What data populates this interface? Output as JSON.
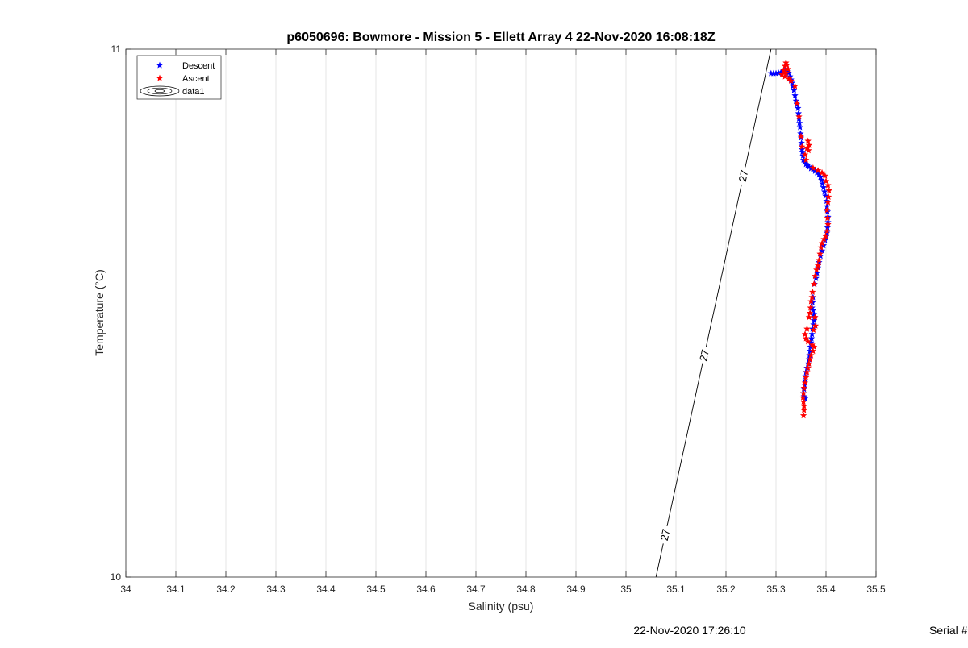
{
  "chart_data": {
    "type": "scatter",
    "title": "p6050696: Bowmore - Mission 5 - Ellett Array 4 22-Nov-2020 16:08:18Z",
    "xlabel": "Salinity (psu)",
    "ylabel": "Temperature (°C)",
    "xlim": [
      34,
      35.5
    ],
    "ylim": [
      10,
      11
    ],
    "x_ticks": [
      "34",
      "34.1",
      "34.2",
      "34.3",
      "34.4",
      "34.5",
      "34.6",
      "34.7",
      "34.8",
      "34.9",
      "35",
      "35.1",
      "35.2",
      "35.3",
      "35.4",
      "35.5"
    ],
    "y_ticks": [
      "10",
      "11"
    ],
    "grid": "x",
    "legend": {
      "placement": "top-left",
      "entries": [
        "Descent",
        "Ascent",
        "data1"
      ]
    },
    "series": [
      {
        "name": "Descent",
        "color": "#0000ff",
        "marker": "star",
        "points": [
          [
            35.29,
            10.954
          ],
          [
            35.295,
            10.954
          ],
          [
            35.3,
            10.954
          ],
          [
            35.305,
            10.955
          ],
          [
            35.31,
            10.956
          ],
          [
            35.315,
            10.957
          ],
          [
            35.318,
            10.959
          ],
          [
            35.32,
            10.962
          ],
          [
            35.322,
            10.958
          ],
          [
            35.325,
            10.955
          ],
          [
            35.328,
            10.948
          ],
          [
            35.33,
            10.942
          ],
          [
            35.332,
            10.936
          ],
          [
            35.334,
            10.93
          ],
          [
            35.336,
            10.922
          ],
          [
            35.338,
            10.912
          ],
          [
            35.34,
            10.902
          ],
          [
            35.342,
            10.895
          ],
          [
            35.344,
            10.888
          ],
          [
            35.345,
            10.878
          ],
          [
            35.346,
            10.868
          ],
          [
            35.347,
            10.86
          ],
          [
            35.348,
            10.852
          ],
          [
            35.349,
            10.84
          ],
          [
            35.35,
            10.832
          ],
          [
            35.351,
            10.822
          ],
          [
            35.352,
            10.81
          ],
          [
            35.353,
            10.805
          ],
          [
            35.354,
            10.798
          ],
          [
            35.355,
            10.79
          ],
          [
            35.357,
            10.786
          ],
          [
            35.36,
            10.782
          ],
          [
            35.363,
            10.78
          ],
          [
            35.366,
            10.777
          ],
          [
            35.37,
            10.774
          ],
          [
            35.374,
            10.772
          ],
          [
            35.378,
            10.769
          ],
          [
            35.382,
            10.766
          ],
          [
            35.386,
            10.762
          ],
          [
            35.389,
            10.758
          ],
          [
            35.391,
            10.752
          ],
          [
            35.393,
            10.745
          ],
          [
            35.395,
            10.738
          ],
          [
            35.397,
            10.73
          ],
          [
            35.399,
            10.722
          ],
          [
            35.401,
            10.712
          ],
          [
            35.402,
            10.702
          ],
          [
            35.403,
            10.692
          ],
          [
            35.404,
            10.682
          ],
          [
            35.404,
            10.672
          ],
          [
            35.403,
            10.662
          ],
          [
            35.402,
            10.652
          ],
          [
            35.4,
            10.645
          ],
          [
            35.398,
            10.638
          ],
          [
            35.395,
            10.628
          ],
          [
            35.392,
            10.618
          ],
          [
            35.389,
            10.608
          ],
          [
            35.386,
            10.596
          ],
          [
            35.384,
            10.586
          ],
          [
            35.382,
            10.576
          ],
          [
            35.38,
            10.566
          ],
          [
            35.377,
            10.555
          ],
          [
            35.374,
            10.53
          ],
          [
            35.373,
            10.52
          ],
          [
            35.372,
            10.51
          ],
          [
            35.374,
            10.505
          ],
          [
            35.376,
            10.498
          ],
          [
            35.377,
            10.492
          ],
          [
            35.376,
            10.486
          ],
          [
            35.375,
            10.478
          ],
          [
            35.373,
            10.47
          ],
          [
            35.372,
            10.46
          ],
          [
            35.371,
            10.452
          ],
          [
            35.37,
            10.444
          ],
          [
            35.369,
            10.436
          ],
          [
            35.368,
            10.428
          ],
          [
            35.367,
            10.42
          ],
          [
            35.366,
            10.412
          ],
          [
            35.364,
            10.404
          ],
          [
            35.362,
            10.396
          ],
          [
            35.36,
            10.388
          ],
          [
            35.359,
            10.38
          ],
          [
            35.358,
            10.372
          ],
          [
            35.357,
            10.364
          ],
          [
            35.356,
            10.356
          ],
          [
            35.355,
            10.348
          ],
          [
            35.356,
            10.342
          ],
          [
            35.358,
            10.338
          ]
        ]
      },
      {
        "name": "Ascent",
        "color": "#ff0000",
        "marker": "star",
        "points": [
          [
            35.312,
            10.952
          ],
          [
            35.315,
            10.96
          ],
          [
            35.318,
            10.968
          ],
          [
            35.32,
            10.974
          ],
          [
            35.322,
            10.97
          ],
          [
            35.324,
            10.962
          ],
          [
            35.32,
            10.955
          ],
          [
            35.318,
            10.948
          ],
          [
            35.326,
            10.944
          ],
          [
            35.33,
            10.94
          ],
          [
            35.338,
            10.93
          ],
          [
            35.342,
            10.898
          ],
          [
            35.346,
            10.872
          ],
          [
            35.35,
            10.835
          ],
          [
            35.352,
            10.815
          ],
          [
            35.358,
            10.8
          ],
          [
            35.36,
            10.79
          ],
          [
            35.365,
            10.808
          ],
          [
            35.366,
            10.818
          ],
          [
            35.364,
            10.826
          ],
          [
            35.362,
            10.812
          ],
          [
            35.374,
            10.775
          ],
          [
            35.384,
            10.77
          ],
          [
            35.392,
            10.766
          ],
          [
            35.398,
            10.76
          ],
          [
            35.4,
            10.75
          ],
          [
            35.404,
            10.742
          ],
          [
            35.406,
            10.732
          ],
          [
            35.405,
            10.72
          ],
          [
            35.404,
            10.71
          ],
          [
            35.402,
            10.695
          ],
          [
            35.403,
            10.68
          ],
          [
            35.404,
            10.668
          ],
          [
            35.402,
            10.655
          ],
          [
            35.399,
            10.646
          ],
          [
            35.396,
            10.64
          ],
          [
            35.392,
            10.632
          ],
          [
            35.39,
            10.624
          ],
          [
            35.388,
            10.612
          ],
          [
            35.386,
            10.6
          ],
          [
            35.384,
            10.59
          ],
          [
            35.381,
            10.582
          ],
          [
            35.378,
            10.57
          ],
          [
            35.376,
            10.555
          ],
          [
            35.373,
            10.54
          ],
          [
            35.372,
            10.53
          ],
          [
            35.37,
            10.522
          ],
          [
            35.369,
            10.51
          ],
          [
            35.368,
            10.5
          ],
          [
            35.366,
            10.492
          ],
          [
            35.378,
            10.492
          ],
          [
            35.379,
            10.476
          ],
          [
            35.375,
            10.468
          ],
          [
            35.362,
            10.47
          ],
          [
            35.358,
            10.46
          ],
          [
            35.36,
            10.452
          ],
          [
            35.364,
            10.446
          ],
          [
            35.372,
            10.44
          ],
          [
            35.376,
            10.436
          ],
          [
            35.374,
            10.428
          ],
          [
            35.37,
            10.42
          ],
          [
            35.368,
            10.412
          ],
          [
            35.366,
            10.404
          ],
          [
            35.364,
            10.396
          ],
          [
            35.362,
            10.388
          ],
          [
            35.36,
            10.378
          ],
          [
            35.358,
            10.368
          ],
          [
            35.356,
            10.358
          ],
          [
            35.355,
            10.348
          ],
          [
            35.354,
            10.34
          ],
          [
            35.355,
            10.332
          ],
          [
            35.356,
            10.324
          ],
          [
            35.356,
            10.316
          ],
          [
            35.355,
            10.306
          ]
        ]
      }
    ],
    "contours": [
      {
        "level": "27",
        "color": "#000000",
        "line": [
          [
            35.06,
            10.0
          ],
          [
            35.29,
            11.0
          ]
        ],
        "labels_at_y": [
          10.08,
          10.42,
          10.76
        ]
      }
    ],
    "legend_extra": {
      "data1_icon": "contour-ellipse-icon"
    }
  },
  "footer": {
    "timestamp": "22-Nov-2020 17:26:10",
    "serial": "Serial #"
  }
}
